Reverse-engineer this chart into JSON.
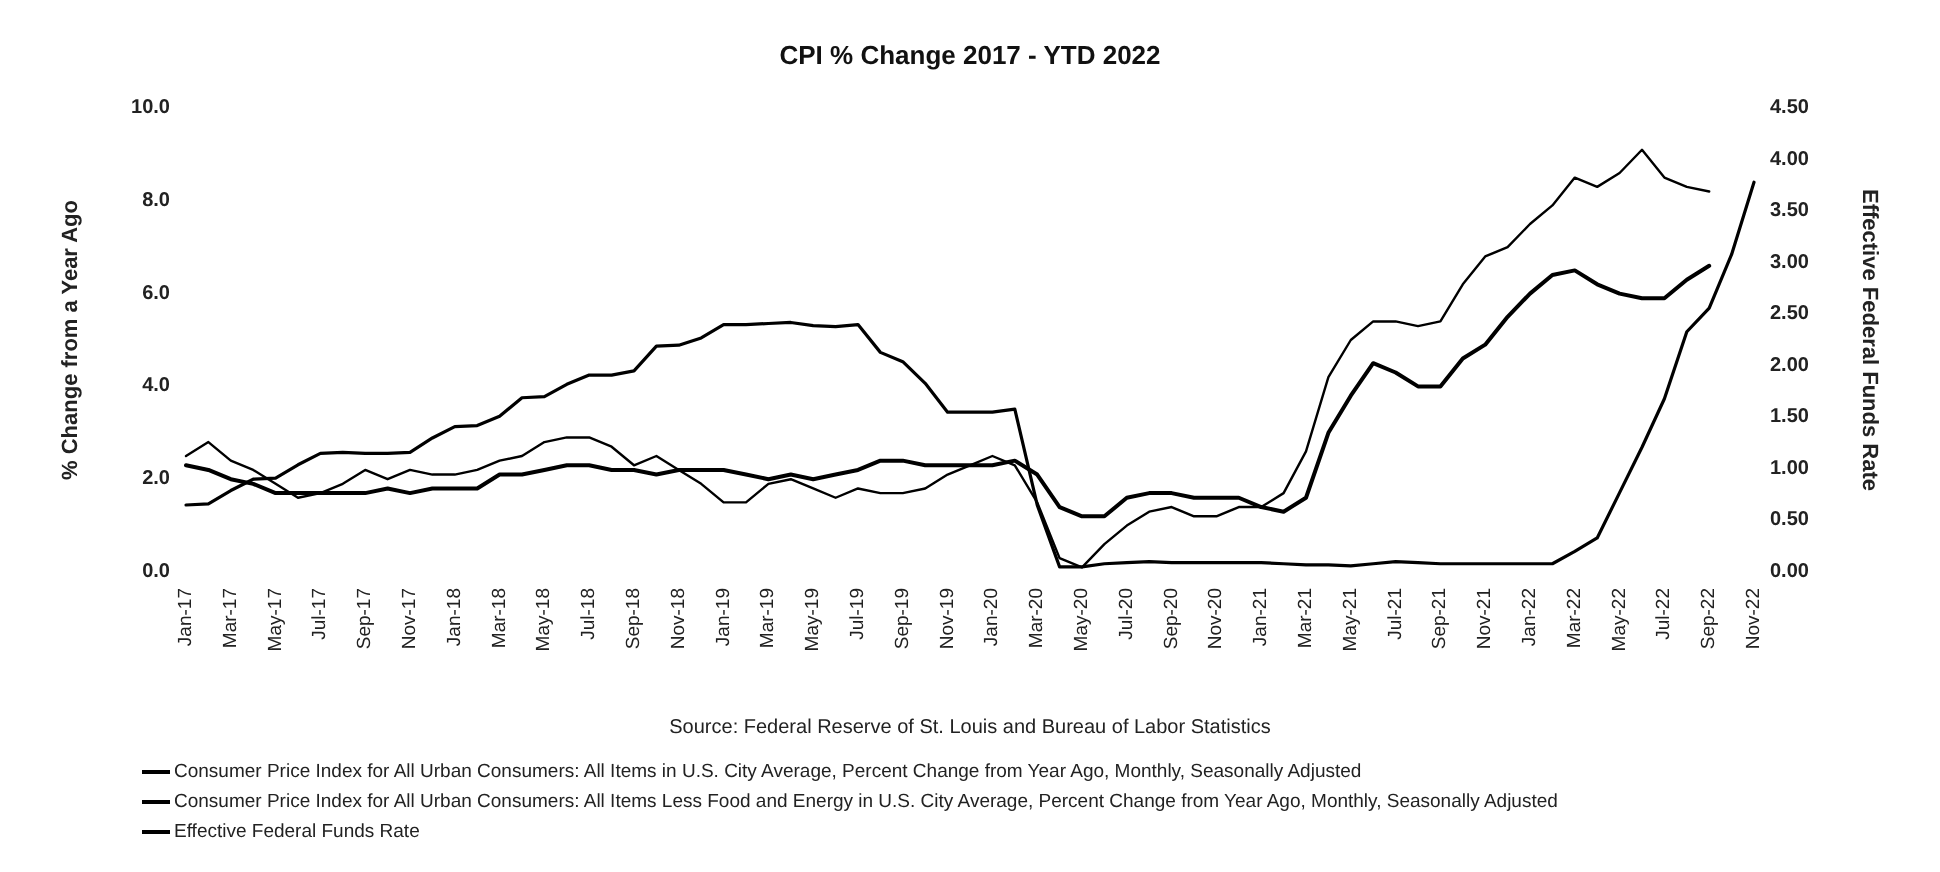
{
  "chart_data": {
    "type": "line",
    "title": "CPI % Change 2017 - YTD 2022",
    "ylabel": "% Change from a Year Ago",
    "y2label": "Effective Federal Funds Rate",
    "annotations": [
      "Source: Federal Reserve of St. Louis and Bureau of Labor Statistics"
    ],
    "categories": [
      "Jan-17",
      null,
      "Mar-17",
      null,
      "May-17",
      null,
      "Jul-17",
      null,
      "Sep-17",
      null,
      "Nov-17",
      null,
      "Jan-18",
      null,
      "Mar-18",
      null,
      "May-18",
      null,
      "Jul-18",
      null,
      "Sep-18",
      null,
      "Nov-18",
      null,
      "Jan-19",
      null,
      "Mar-19",
      null,
      "May-19",
      null,
      "Jul-19",
      null,
      "Sep-19",
      null,
      "Nov-19",
      null,
      "Jan-20",
      null,
      "Mar-20",
      null,
      "May-20",
      null,
      "Jul-20",
      null,
      "Sep-20",
      null,
      "Nov-20",
      null,
      "Jan-21",
      null,
      "Mar-21",
      null,
      "May-21",
      null,
      "Jul-21",
      null,
      "Sep-21",
      null,
      "Nov-21",
      null,
      "Jan-22",
      null,
      "Mar-22",
      null,
      "May-22",
      null,
      "Jul-22",
      null,
      "Sep-22",
      null,
      "Nov-22"
    ],
    "series": [
      {
        "name": "Consumer Price Index for All Urban Consumers: All Items in U.S. City Average, Percent Change from Year Ago, Monthly, Seasonally Adjusted",
        "color": "#000000",
        "values": [
          2.5,
          2.8,
          2.4,
          2.2,
          1.9,
          1.6,
          1.7,
          1.9,
          2.2,
          2.0,
          2.2,
          2.1,
          2.1,
          2.2,
          2.4,
          2.5,
          2.8,
          2.9,
          2.9,
          2.7,
          2.3,
          2.5,
          2.2,
          1.9,
          1.5,
          1.5,
          1.9,
          2.0,
          1.8,
          1.6,
          1.8,
          1.7,
          1.7,
          1.8,
          2.1,
          2.3,
          2.5,
          2.3,
          1.5,
          0.3,
          0.1,
          0.6,
          1.0,
          1.3,
          1.4,
          1.2,
          1.2,
          1.4,
          1.4,
          1.7,
          2.6,
          4.2,
          5.0,
          5.4,
          5.4,
          5.3,
          5.4,
          6.2,
          6.8,
          7.0,
          7.5,
          7.9,
          8.5,
          8.3,
          8.6,
          9.1,
          8.5,
          8.3,
          8.2,
          null,
          null
        ]
      },
      {
        "name": "Consumer Price Index for All Urban Consumers: All Items Less Food and Energy in U.S. City Average, Percent Change from Year Ago, Monthly, Seasonally Adjusted",
        "color": "#000000",
        "values": [
          2.3,
          2.2,
          2.0,
          1.9,
          1.7,
          1.7,
          1.7,
          1.7,
          1.7,
          1.8,
          1.7,
          1.8,
          1.8,
          1.8,
          2.1,
          2.1,
          2.2,
          2.3,
          2.3,
          2.2,
          2.2,
          2.1,
          2.2,
          2.2,
          2.2,
          2.1,
          2.0,
          2.1,
          2.0,
          2.1,
          2.2,
          2.4,
          2.4,
          2.3,
          2.3,
          2.3,
          2.3,
          2.4,
          2.1,
          1.4,
          1.2,
          1.2,
          1.6,
          1.7,
          1.7,
          1.6,
          1.6,
          1.6,
          1.4,
          1.3,
          1.6,
          3.0,
          3.8,
          4.5,
          4.3,
          4.0,
          4.0,
          4.6,
          4.9,
          5.5,
          6.0,
          6.4,
          6.5,
          6.2,
          6.0,
          5.9,
          5.9,
          6.3,
          6.6,
          null,
          null
        ]
      },
      {
        "name": "Effective Federal Funds Rate",
        "color": "#000000",
        "axis": "y2",
        "values": [
          0.65,
          0.66,
          0.79,
          0.9,
          0.91,
          1.04,
          1.15,
          1.16,
          1.15,
          1.15,
          1.16,
          1.3,
          1.41,
          1.42,
          1.51,
          1.69,
          1.7,
          1.82,
          1.91,
          1.91,
          1.95,
          2.19,
          2.2,
          2.27,
          2.4,
          2.4,
          2.41,
          2.42,
          2.39,
          2.38,
          2.4,
          2.13,
          2.04,
          1.83,
          1.55,
          1.55,
          1.55,
          1.58,
          0.65,
          0.05,
          0.05,
          0.08,
          0.09,
          0.1,
          0.09,
          0.09,
          0.09,
          0.09,
          0.09,
          0.08,
          0.07,
          0.07,
          0.06,
          0.08,
          0.1,
          0.09,
          0.08,
          0.08,
          0.08,
          0.08,
          0.08,
          0.08,
          0.2,
          0.33,
          0.77,
          1.21,
          1.68,
          2.33,
          2.56,
          3.08,
          3.78
        ]
      }
    ],
    "ylim": [
      0,
      10
    ],
    "yticks": [
      {
        "value": 0,
        "label": "0.0"
      },
      {
        "value": 2,
        "label": "2.0"
      },
      {
        "value": 4,
        "label": "4.0"
      },
      {
        "value": 6,
        "label": "6.0"
      },
      {
        "value": 8,
        "label": "8.0"
      },
      {
        "value": 10,
        "label": "10.0"
      }
    ],
    "y2lim": [
      0,
      4.5
    ],
    "y2ticks": [
      {
        "value": 0,
        "label": "0.00"
      },
      {
        "value": 0.5,
        "label": "0.50"
      },
      {
        "value": 1,
        "label": "1.00"
      },
      {
        "value": 1.5,
        "label": "1.50"
      },
      {
        "value": 2,
        "label": "2.00"
      },
      {
        "value": 2.5,
        "label": "2.50"
      },
      {
        "value": 3,
        "label": "3.00"
      },
      {
        "value": 3.5,
        "label": "3.50"
      },
      {
        "value": 4,
        "label": "4.00"
      },
      {
        "value": 4.5,
        "label": "4.50"
      }
    ],
    "grid": false,
    "legend": "bottom left",
    "marker": "none",
    "line_style": "solid"
  }
}
